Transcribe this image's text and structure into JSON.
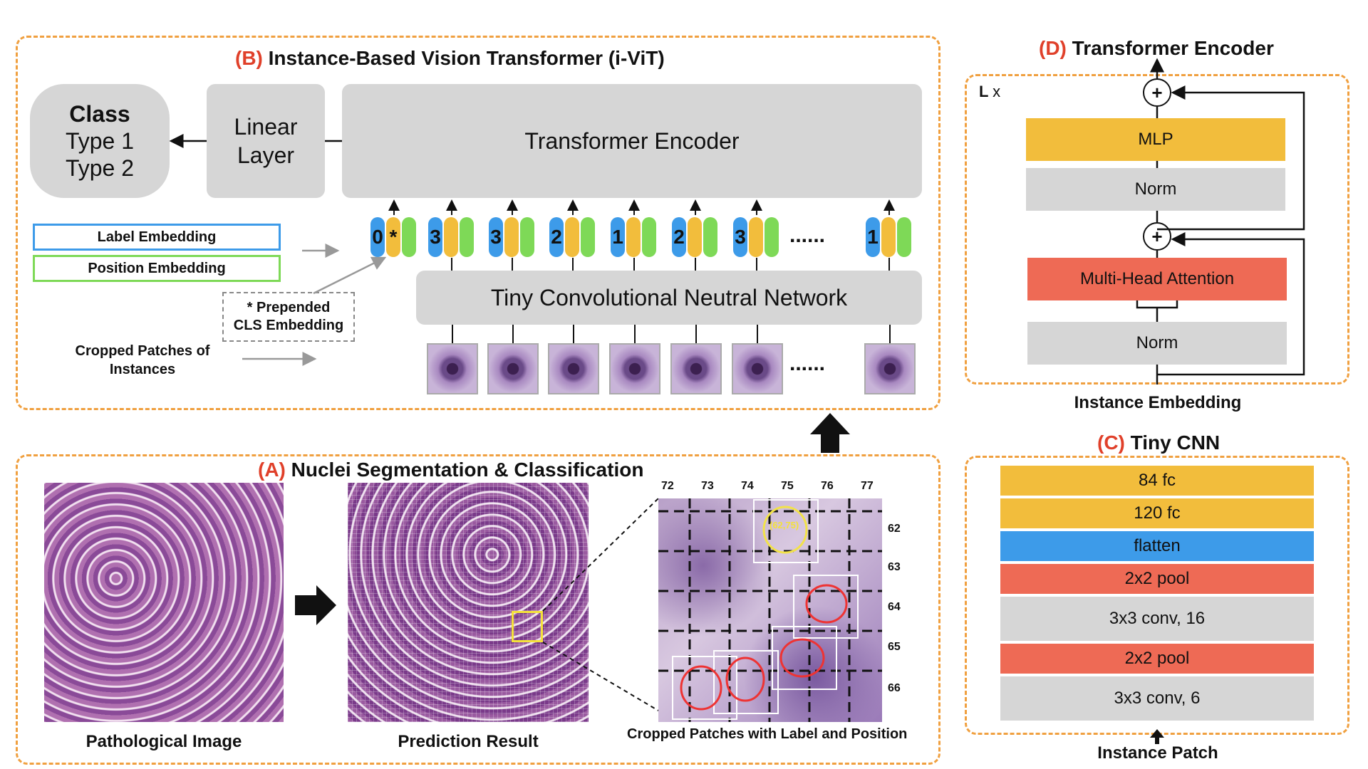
{
  "panel_b": {
    "letter": "(B)",
    "title": "Instance-Based Vision Transformer (i-ViT)",
    "class_box": {
      "title": "Class",
      "line1": "Type 1",
      "line2": "Type 2"
    },
    "linear_layer": {
      "line1": "Linear",
      "line2": "Layer"
    },
    "transformer_encoder": "Transformer Encoder",
    "tiny_cnn_box": "Tiny Convolutional Neutral Network",
    "legend": {
      "label_embedding": "Label Embedding",
      "position_embedding": "Position Embedding"
    },
    "prepended_note": {
      "line1": "* Prepended",
      "line2": "CLS Embedding"
    },
    "cropped_note": {
      "line1": "Cropped Patches of",
      "line2": "Instances"
    },
    "cls_star": "*",
    "token_labels": [
      "0",
      "3",
      "3",
      "2",
      "1",
      "2",
      "3",
      "1"
    ],
    "ellipsis": "......"
  },
  "panel_a": {
    "letter": "(A)",
    "title": "Nuclei Segmentation & Classification",
    "caption_pathological": "Pathological Image",
    "caption_prediction": "Prediction Result",
    "caption_cropped": "Cropped Patches with Label and Position",
    "col_labels": [
      "72",
      "73",
      "74",
      "75",
      "76",
      "77"
    ],
    "row_labels": [
      "62",
      "63",
      "64",
      "65",
      "66"
    ],
    "nucleus_tag": "(62,75)"
  },
  "panel_d": {
    "letter": "(D)",
    "title": "Transformer Encoder",
    "repeat_label": "L",
    "repeat_x": "x",
    "mlp": "MLP",
    "norm_top": "Norm",
    "mha": "Multi-Head Attention",
    "norm_bottom": "Norm",
    "plus": "+",
    "input_label": "Instance Embedding"
  },
  "panel_c": {
    "letter": "(C)",
    "title": "Tiny CNN",
    "layers": [
      "84 fc",
      "120 fc",
      "flatten",
      "2x2 pool",
      "3x3 conv, 16",
      "2x2 pool",
      "3x3 conv, 6"
    ],
    "input_label": "Instance Patch"
  },
  "colors": {
    "gray": "#d6d6d6",
    "yellow": "#f2bd3c",
    "blue": "#3d9be9",
    "red": "#ee6a55",
    "green": "#7ed957",
    "dash": "#f0a040",
    "accent": "#e0402a"
  }
}
